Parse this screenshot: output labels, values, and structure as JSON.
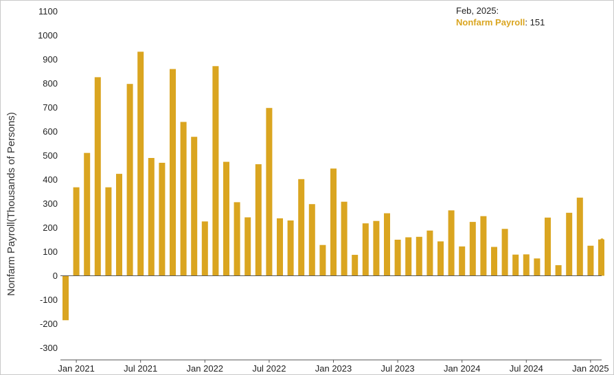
{
  "chart_data": {
    "type": "bar",
    "title": "",
    "xlabel": "",
    "ylabel": "Nonfarm Payroll(Thousands of Persons)",
    "ylim": [
      -350,
      1130
    ],
    "yticks": [
      -300,
      -200,
      -100,
      0,
      100,
      200,
      300,
      400,
      500,
      600,
      700,
      800,
      900,
      1000,
      1100
    ],
    "xtick_labels": [
      "Jan 2021",
      "Jul 2021",
      "Jan 2022",
      "Jul 2022",
      "Jan 2023",
      "Jul 2023",
      "Jan 2024",
      "Jul 2024",
      "Jan 2025"
    ],
    "xtick_dates": [
      "2021-01",
      "2021-07",
      "2022-01",
      "2022-07",
      "2023-01",
      "2023-07",
      "2024-01",
      "2024-07",
      "2025-01"
    ],
    "grid": false,
    "bar_color": "#DAA520",
    "series": [
      {
        "name": "Nonfarm Payroll",
        "x": [
          "2020-12",
          "2021-01",
          "2021-02",
          "2021-03",
          "2021-04",
          "2021-05",
          "2021-06",
          "2021-07",
          "2021-08",
          "2021-09",
          "2021-10",
          "2021-11",
          "2021-12",
          "2022-01",
          "2022-02",
          "2022-03",
          "2022-04",
          "2022-05",
          "2022-06",
          "2022-07",
          "2022-08",
          "2022-09",
          "2022-10",
          "2022-11",
          "2022-12",
          "2023-01",
          "2023-02",
          "2023-03",
          "2023-04",
          "2023-05",
          "2023-06",
          "2023-07",
          "2023-08",
          "2023-09",
          "2023-10",
          "2023-11",
          "2023-12",
          "2024-01",
          "2024-02",
          "2024-03",
          "2024-04",
          "2024-05",
          "2024-06",
          "2024-07",
          "2024-08",
          "2024-09",
          "2024-10",
          "2024-11",
          "2024-12",
          "2025-01",
          "2025-02"
        ],
        "values": [
          -185,
          368,
          511,
          826,
          368,
          424,
          798,
          932,
          490,
          470,
          860,
          640,
          578,
          226,
          872,
          474,
          306,
          243,
          464,
          698,
          239,
          230,
          402,
          298,
          128,
          446,
          308,
          87,
          218,
          228,
          260,
          150,
          160,
          162,
          188,
          143,
          272,
          122,
          224,
          248,
          120,
          195,
          88,
          89,
          72,
          242,
          44,
          262,
          325,
          125,
          151
        ]
      }
    ],
    "tooltip": {
      "date": "Feb, 2025:",
      "series": "Nonfarm Payroll",
      "value": "151"
    }
  }
}
